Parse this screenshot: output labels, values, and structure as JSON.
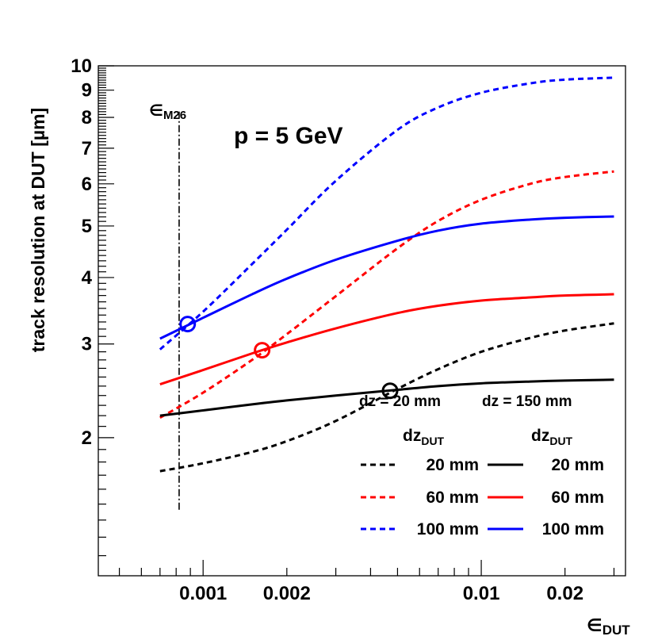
{
  "chart_data": {
    "type": "line",
    "xscale": "log",
    "yscale": "log",
    "xlim": [
      0.00042,
      0.033
    ],
    "ylim": [
      1.1,
      10
    ],
    "xlabel": {
      "symbol": "∈",
      "sub": "DUT"
    },
    "ylabel": "track resolution at DUT [µm]",
    "x_ticks": [
      {
        "value": 0.001,
        "label": "0.001"
      },
      {
        "value": 0.002,
        "label": "0.002"
      },
      {
        "value": 0.01,
        "label": "0.01"
      },
      {
        "value": 0.02,
        "label": "0.02"
      }
    ],
    "y_ticks": [
      {
        "value": 2,
        "label": "2"
      },
      {
        "value": 3,
        "label": "3"
      },
      {
        "value": 4,
        "label": "4"
      },
      {
        "value": 5,
        "label": "5"
      },
      {
        "value": 6,
        "label": "6"
      },
      {
        "value": 7,
        "label": "7"
      },
      {
        "value": 8,
        "label": "8"
      },
      {
        "value": 9,
        "label": "9"
      },
      {
        "value": 10,
        "label": "10"
      }
    ],
    "annotation": "p = 5 GeV",
    "vline": {
      "x": 0.00082,
      "y_range": [
        1.45,
        8.2
      ],
      "label_symbol": "∈",
      "label_sub": "M26"
    },
    "header_dz": [
      "dz =  20 mm",
      "dz = 150 mm"
    ],
    "header_dzdut": {
      "text": "dz",
      "sub": "DUT"
    },
    "series": [
      {
        "name": "20 mm",
        "group": "dz = 20 mm",
        "color": "#000000",
        "dash": true,
        "x": [
          0.0007,
          0.001,
          0.0015,
          0.002,
          0.003,
          0.005,
          0.007,
          0.01,
          0.015,
          0.02,
          0.03
        ],
        "y": [
          1.73,
          1.79,
          1.88,
          1.97,
          2.15,
          2.47,
          2.69,
          2.9,
          3.08,
          3.18,
          3.28
        ]
      },
      {
        "name": "60 mm",
        "group": "dz = 20 mm",
        "color": "#ff0000",
        "dash": true,
        "x": [
          0.0007,
          0.001,
          0.0015,
          0.002,
          0.003,
          0.005,
          0.007,
          0.01,
          0.015,
          0.02,
          0.03
        ],
        "y": [
          2.18,
          2.43,
          2.8,
          3.13,
          3.69,
          4.54,
          5.11,
          5.6,
          6.0,
          6.18,
          6.33
        ]
      },
      {
        "name": "100 mm",
        "group": "dz = 20 mm",
        "color": "#0000ff",
        "dash": true,
        "x": [
          0.0007,
          0.001,
          0.0015,
          0.002,
          0.003,
          0.005,
          0.007,
          0.01,
          0.015,
          0.02,
          0.03
        ],
        "y": [
          2.93,
          3.45,
          4.24,
          4.92,
          6.08,
          7.58,
          8.35,
          8.9,
          9.27,
          9.42,
          9.5
        ]
      },
      {
        "name": "20 mm",
        "group": "dz = 150 mm",
        "color": "#000000",
        "dash": false,
        "x": [
          0.0007,
          0.001,
          0.0015,
          0.002,
          0.003,
          0.005,
          0.007,
          0.01,
          0.015,
          0.02,
          0.03
        ],
        "y": [
          2.2,
          2.25,
          2.31,
          2.35,
          2.4,
          2.46,
          2.5,
          2.53,
          2.55,
          2.56,
          2.57
        ]
      },
      {
        "name": "60 mm",
        "group": "dz = 150 mm",
        "color": "#ff0000",
        "dash": false,
        "x": [
          0.0007,
          0.001,
          0.0015,
          0.002,
          0.003,
          0.005,
          0.007,
          0.01,
          0.015,
          0.02,
          0.03
        ],
        "y": [
          2.52,
          2.68,
          2.88,
          3.02,
          3.21,
          3.43,
          3.54,
          3.62,
          3.67,
          3.7,
          3.72
        ]
      },
      {
        "name": "100 mm",
        "group": "dz = 150 mm",
        "color": "#0000ff",
        "dash": false,
        "x": [
          0.0007,
          0.001,
          0.0015,
          0.002,
          0.003,
          0.005,
          0.007,
          0.01,
          0.015,
          0.02,
          0.03
        ],
        "y": [
          3.07,
          3.36,
          3.72,
          3.98,
          4.32,
          4.69,
          4.9,
          5.05,
          5.14,
          5.18,
          5.21
        ]
      }
    ],
    "crossings": [
      {
        "x": 0.00088,
        "y": 3.27,
        "color": "#0000ff"
      },
      {
        "x": 0.00163,
        "y": 2.92,
        "color": "#ff0000"
      },
      {
        "x": 0.0047,
        "y": 2.45,
        "color": "#000000"
      }
    ]
  }
}
